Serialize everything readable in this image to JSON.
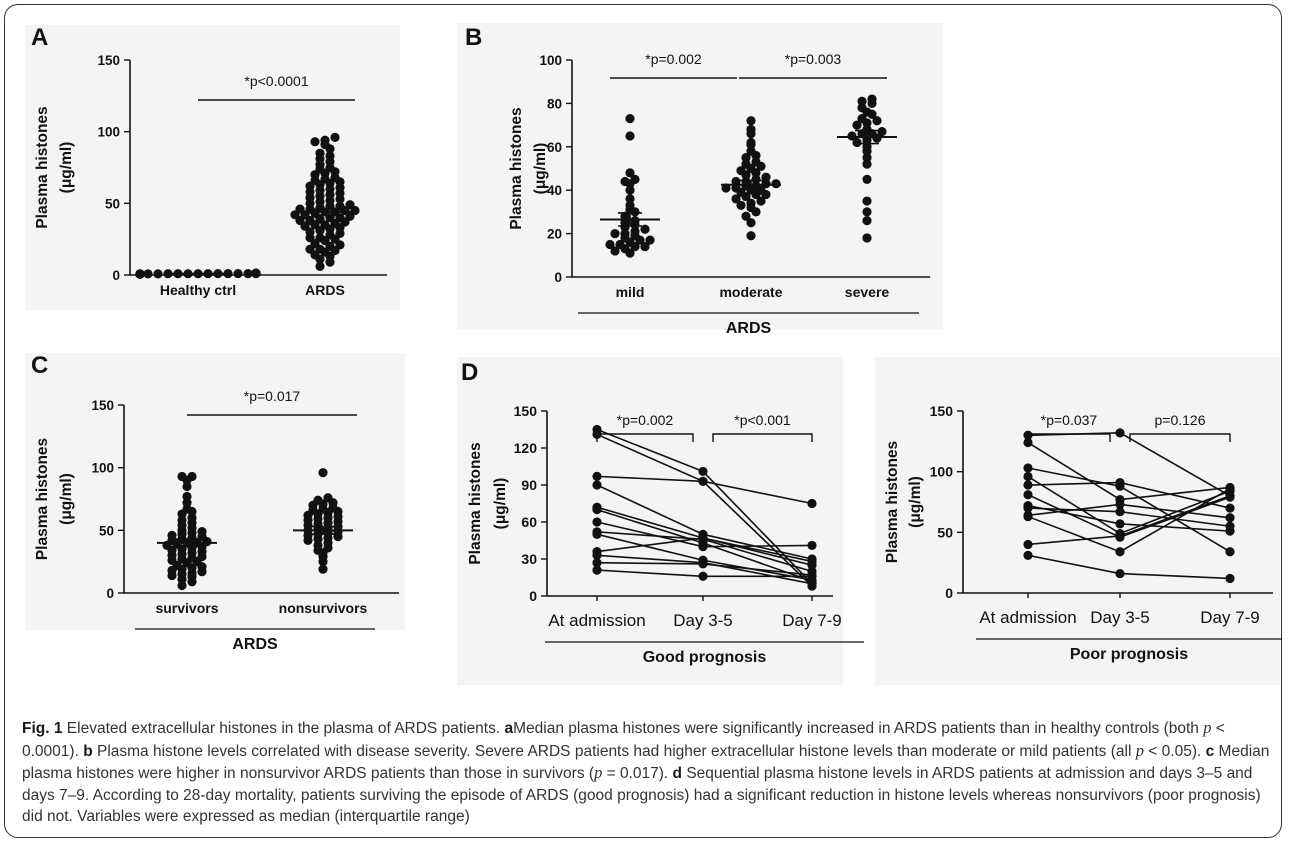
{
  "chart_data": [
    {
      "panel": "A",
      "type": "scatter",
      "ylabel": "Plasma histones (μg/ml)",
      "ylim": [
        0,
        150
      ],
      "yticks": [
        0,
        50,
        100,
        150
      ],
      "categories": [
        "Healthy ctrl",
        "ARDS"
      ],
      "series": [
        {
          "category": "Healthy ctrl",
          "values": [
            0.5,
            0.6,
            0.8,
            0.9,
            1.0,
            1.1,
            1.2,
            0.7,
            0.9,
            1.0,
            1.3,
            0.8,
            1.1,
            0.6,
            0.9,
            1.0,
            1.2,
            0.8,
            0.7,
            1.0,
            1.1,
            0.9,
            0.8,
            1.2,
            1.0,
            0.9,
            0.7
          ],
          "median": 0.9
        },
        {
          "category": "ARDS",
          "values": [
            6,
            9,
            11,
            13,
            14,
            16,
            17,
            18,
            18,
            20,
            21,
            22,
            24,
            25,
            26,
            26,
            28,
            29,
            30,
            31,
            32,
            33,
            34,
            35,
            35,
            36,
            37,
            38,
            38,
            39,
            40,
            40,
            41,
            42,
            42,
            43,
            44,
            44,
            45,
            45,
            46,
            46,
            47,
            48,
            48,
            49,
            50,
            51,
            52,
            53,
            54,
            55,
            56,
            57,
            58,
            59,
            60,
            61,
            62,
            63,
            64,
            65,
            66,
            67,
            68,
            70,
            71,
            72,
            74,
            75,
            77,
            79,
            81,
            83,
            85,
            88,
            91,
            93,
            94,
            96
          ],
          "median": 44,
          "sem": 2
        }
      ],
      "annotations": [
        {
          "text": "*p<0.0001",
          "between": [
            "Healthy ctrl",
            "ARDS"
          ]
        }
      ]
    },
    {
      "panel": "B",
      "type": "scatter",
      "ylabel": "Plasma histones (μg/ml)",
      "xlabel": "ARDS",
      "ylim": [
        0,
        100
      ],
      "yticks": [
        0,
        20,
        40,
        60,
        80,
        100
      ],
      "categories": [
        "mild",
        "moderate",
        "severe"
      ],
      "series": [
        {
          "category": "mild",
          "values": [
            11,
            12,
            13,
            14,
            14,
            15,
            15,
            16,
            17,
            17,
            18,
            19,
            20,
            20,
            21,
            22,
            23,
            24,
            25,
            26,
            28,
            30,
            31,
            33,
            36,
            40,
            43,
            44,
            45,
            48,
            65,
            73
          ],
          "median": 26.5,
          "sem": 3
        },
        {
          "category": "moderate",
          "values": [
            19,
            25,
            28,
            30,
            32,
            33,
            34,
            35,
            36,
            37,
            38,
            38,
            39,
            40,
            40,
            41,
            41,
            42,
            42,
            43,
            43,
            44,
            44,
            45,
            46,
            47,
            48,
            49,
            50,
            51,
            52,
            53,
            55,
            56,
            58,
            61,
            62,
            66,
            68,
            72
          ],
          "median": 42.5,
          "sem": 2
        },
        {
          "category": "severe",
          "values": [
            18,
            26,
            30,
            35,
            45,
            52,
            55,
            58,
            60,
            62,
            63,
            64,
            65,
            66,
            66,
            67,
            68,
            70,
            71,
            72,
            73,
            75,
            76,
            78,
            80,
            81,
            82
          ],
          "median": 64.5,
          "sem": 3
        }
      ],
      "annotations": [
        {
          "text": "*p=0.002",
          "between": [
            "mild",
            "moderate"
          ]
        },
        {
          "text": "*p=0.003",
          "between": [
            "moderate",
            "severe"
          ]
        }
      ]
    },
    {
      "panel": "C",
      "type": "scatter",
      "ylabel": "Plasma histones (μg/ml)",
      "xlabel": "ARDS",
      "ylim": [
        0,
        150
      ],
      "yticks": [
        0,
        50,
        100,
        150
      ],
      "categories": [
        "survivors",
        "nonsurvivors"
      ],
      "series": [
        {
          "category": "survivors",
          "values": [
            6,
            9,
            11,
            13,
            14,
            15,
            16,
            17,
            18,
            19,
            20,
            21,
            22,
            24,
            25,
            26,
            27,
            28,
            29,
            30,
            31,
            32,
            33,
            34,
            35,
            36,
            37,
            38,
            39,
            40,
            40,
            41,
            42,
            43,
            44,
            45,
            46,
            47,
            48,
            49,
            50,
            52,
            54,
            56,
            58,
            60,
            63,
            65,
            67,
            72,
            77,
            85,
            90,
            93,
            93
          ],
          "median": 40,
          "sem": 3
        },
        {
          "category": "nonsurvivors",
          "values": [
            19,
            25,
            29,
            32,
            34,
            36,
            38,
            40,
            42,
            43,
            44,
            45,
            46,
            47,
            48,
            49,
            50,
            51,
            52,
            53,
            54,
            55,
            56,
            57,
            58,
            59,
            60,
            61,
            62,
            63,
            64,
            65,
            66,
            67,
            68,
            70,
            71,
            72,
            74,
            76,
            96
          ],
          "median": 50,
          "sem": 3
        }
      ],
      "annotations": [
        {
          "text": "*p=0.017",
          "between": [
            "survivors",
            "nonsurvivors"
          ]
        }
      ]
    },
    {
      "panel": "D",
      "type": "line",
      "ylabel": "Plasma histones (μg/ml)",
      "xlabel": "Good prognosis",
      "ylim": [
        0,
        150
      ],
      "yticks": [
        0,
        30,
        60,
        90,
        120,
        150
      ],
      "categories": [
        "At admission",
        "Day 3-5",
        "Day 7-9"
      ],
      "series": [
        {
          "values": [
            135,
            101,
            10
          ]
        },
        {
          "values": [
            131,
            93,
            8
          ]
        },
        {
          "values": [
            97,
            93,
            75
          ]
        },
        {
          "values": [
            90,
            50,
            30
          ]
        },
        {
          "values": [
            72,
            47,
            25
          ]
        },
        {
          "values": [
            70,
            43,
            12
          ]
        },
        {
          "values": [
            60,
            40,
            41
          ]
        },
        {
          "values": [
            52,
            46,
            20
          ]
        },
        {
          "values": [
            50,
            29,
            13
          ]
        },
        {
          "values": [
            36,
            47,
            28
          ]
        },
        {
          "values": [
            33,
            27,
            10
          ]
        },
        {
          "values": [
            27,
            26,
            17
          ]
        },
        {
          "values": [
            21,
            16,
            16
          ]
        }
      ],
      "annotations": [
        {
          "text": "*p=0.002",
          "between": [
            "At admission",
            "Day 3-5"
          ]
        },
        {
          "text": "*p<0.001",
          "between": [
            "Day 3-5",
            "Day 7-9"
          ]
        }
      ]
    },
    {
      "panel": "",
      "type": "line",
      "ylabel": "Plasma histones (μg/ml)",
      "xlabel": "Poor prognosis",
      "ylim": [
        0,
        150
      ],
      "yticks": [
        0,
        50,
        100,
        150
      ],
      "categories": [
        "At admission",
        "Day 3-5",
        "Day 7-9"
      ],
      "series": [
        {
          "values": [
            130,
            132,
            80
          ]
        },
        {
          "values": [
            124,
            77,
            87
          ]
        },
        {
          "values": [
            103,
            88,
            34
          ]
        },
        {
          "values": [
            96,
            49,
            84
          ]
        },
        {
          "values": [
            89,
            91,
            70
          ]
        },
        {
          "values": [
            81,
            46,
            79
          ]
        },
        {
          "values": [
            72,
            57,
            51
          ]
        },
        {
          "values": [
            70,
            67,
            55
          ]
        },
        {
          "values": [
            64,
            73,
            62
          ]
        },
        {
          "values": [
            63,
            34,
            86
          ]
        },
        {
          "values": [
            40,
            47,
            80
          ]
        },
        {
          "values": [
            31,
            16,
            12
          ]
        }
      ],
      "annotations": [
        {
          "text": "*p=0.037",
          "between": [
            "At admission",
            "Day 3-5"
          ]
        },
        {
          "text": "p=0.126",
          "between": [
            "Day 3-5",
            "Day 7-9"
          ]
        }
      ]
    }
  ],
  "caption": {
    "fig_label": "Fig. 1",
    "title": "Elevated extracellular histones in the plasma of ARDS patients.",
    "a_label": "a",
    "a_text": "Median plasma histones were significantly increased in ARDS patients than in healthy controls (both ",
    "a_p": "p",
    "a_p_text": " < 0.0001).",
    "b_label": "b",
    "b_text": "Plasma histone levels correlated with disease severity. Severe ARDS patients had higher extracellular histone levels than moderate or mild patients (all ",
    "b_p": "p",
    "b_p_text": " < 0.05).",
    "c_label": "c",
    "c_text": "Median plasma histones were higher in nonsurvivor ARDS patients than those in survivors (",
    "c_p": "p",
    "c_p_text": " = 0.017).",
    "d_label": "d",
    "d_text": "Sequential plasma histone levels in ARDS patients at admission and days 3–5 and days 7–9. According to 28-day mortality, patients surviving the episode of ARDS (good prognosis) had a significant reduction in histone levels whereas nonsurvivors (poor prognosis) did not. Variables were expressed as median (interquartile range)"
  }
}
